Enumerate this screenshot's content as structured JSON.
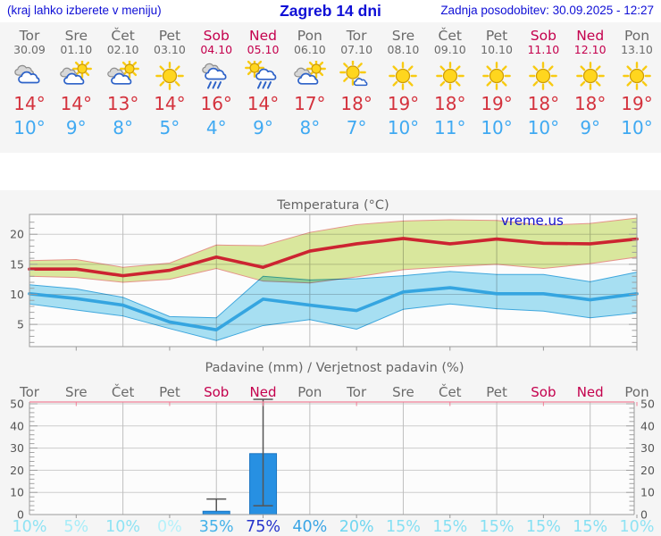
{
  "header": {
    "left_note": "(kraj lahko izberete v meniju)",
    "title": "Zagreb 14 dni",
    "last_updated": "Zadnja posodobitev: 30.09.2025 - 12:27"
  },
  "watermark": "vreme.us",
  "colors": {
    "link_blue": "#0f0fd6",
    "weekday": "#6a6a6a",
    "weekend": "#c4004d",
    "temp_max": "#d4323d",
    "temp_min": "#3fa9f2",
    "bar_fill": "#2790e2",
    "bar_edge": "#1b76c2",
    "max_line": "#cc2431",
    "max_band": "#dcea9f",
    "max_band_edge": "#e8958c",
    "min_line": "#35a5e0",
    "min_band": "#a9e2f5",
    "min_band_edge": "#3fa9e0",
    "precip_top_spine": "#ef7f96",
    "whisker": "#555555",
    "axis": "#9a9a9a",
    "grid_h": "#cdcdcd",
    "grid_v": "#bfbfbf",
    "chart_text": "#666666",
    "tick_text": "#555555"
  },
  "days": [
    {
      "name": "Tor",
      "date": "30.09",
      "weekend": false,
      "icon": "cloudy",
      "tmax": "14°",
      "tmin": "10°"
    },
    {
      "name": "Sre",
      "date": "01.10",
      "weekend": false,
      "icon": "partly",
      "tmax": "14°",
      "tmin": "9°"
    },
    {
      "name": "Čet",
      "date": "02.10",
      "weekend": false,
      "icon": "partly",
      "tmax": "13°",
      "tmin": "8°"
    },
    {
      "name": "Pet",
      "date": "03.10",
      "weekend": false,
      "icon": "sunny",
      "tmax": "14°",
      "tmin": "5°"
    },
    {
      "name": "Sob",
      "date": "04.10",
      "weekend": true,
      "icon": "rain",
      "tmax": "16°",
      "tmin": "4°"
    },
    {
      "name": "Ned",
      "date": "05.10",
      "weekend": true,
      "icon": "sun-rain",
      "tmax": "14°",
      "tmin": "9°"
    },
    {
      "name": "Pon",
      "date": "06.10",
      "weekend": false,
      "icon": "partly",
      "tmax": "17°",
      "tmin": "8°"
    },
    {
      "name": "Tor",
      "date": "07.10",
      "weekend": false,
      "icon": "sun-cloud",
      "tmax": "18°",
      "tmin": "7°"
    },
    {
      "name": "Sre",
      "date": "08.10",
      "weekend": false,
      "icon": "sunny",
      "tmax": "19°",
      "tmin": "10°"
    },
    {
      "name": "Čet",
      "date": "09.10",
      "weekend": false,
      "icon": "sunny",
      "tmax": "18°",
      "tmin": "11°"
    },
    {
      "name": "Pet",
      "date": "10.10",
      "weekend": false,
      "icon": "sunny",
      "tmax": "19°",
      "tmin": "10°"
    },
    {
      "name": "Sob",
      "date": "11.10",
      "weekend": true,
      "icon": "sunny",
      "tmax": "18°",
      "tmin": "10°"
    },
    {
      "name": "Ned",
      "date": "12.10",
      "weekend": true,
      "icon": "sunny",
      "tmax": "18°",
      "tmin": "9°"
    },
    {
      "name": "Pon",
      "date": "13.10",
      "weekend": false,
      "icon": "sunny",
      "tmax": "19°",
      "tmin": "10°"
    }
  ],
  "chart_data": [
    {
      "type": "line",
      "title": "Temperatura (°C)",
      "categories": [
        "Tor",
        "Sre",
        "Čet",
        "Pet",
        "Sob",
        "Ned",
        "Pon",
        "Tor",
        "Sre",
        "Čet",
        "Pet",
        "Sob",
        "Ned",
        "Pon"
      ],
      "yticks": [
        5,
        10,
        15,
        20
      ],
      "ylim": [
        1.3,
        23.3
      ],
      "grid_day_indices": [
        2,
        4,
        6,
        8,
        10,
        12
      ],
      "legend_position": "none",
      "series": [
        {
          "name": "max-temp",
          "values": [
            14.2,
            14.2,
            13.1,
            14.0,
            16.2,
            14.5,
            17.2,
            18.4,
            19.3,
            18.4,
            19.2,
            18.5,
            18.4,
            19.2
          ],
          "band_upper": [
            15.6,
            15.8,
            14.5,
            15.2,
            18.2,
            18.1,
            20.3,
            21.6,
            22.2,
            22.4,
            22.3,
            21.5,
            21.8,
            22.7
          ],
          "band_lower": [
            13.0,
            12.8,
            12.0,
            12.5,
            14.3,
            12.2,
            11.9,
            12.9,
            14.1,
            14.6,
            15.0,
            14.3,
            15.1,
            16.2
          ]
        },
        {
          "name": "min-temp",
          "values": [
            10.1,
            9.3,
            8.2,
            5.4,
            4.1,
            9.2,
            8.2,
            7.3,
            10.4,
            11.1,
            10.1,
            10.1,
            9.1,
            10.1
          ],
          "band_upper": [
            11.6,
            10.9,
            9.5,
            6.3,
            6.1,
            13.0,
            12.4,
            12.6,
            13.1,
            13.8,
            13.3,
            13.3,
            12.1,
            13.7
          ],
          "band_lower": [
            8.4,
            7.4,
            6.4,
            4.3,
            2.3,
            4.8,
            5.8,
            4.2,
            7.5,
            8.4,
            7.6,
            7.2,
            6.1,
            6.9
          ]
        }
      ]
    },
    {
      "type": "bar",
      "title": "Padavine (mm) / Verjetnost padavin (%)",
      "categories": [
        "Tor",
        "Sre",
        "Čet",
        "Pet",
        "Sob",
        "Ned",
        "Pon",
        "Tor",
        "Sre",
        "Čet",
        "Pet",
        "Sob",
        "Ned",
        "Pon"
      ],
      "values": [
        0,
        0,
        0,
        0,
        1.5,
        27.5,
        0,
        0,
        0,
        0,
        0,
        0,
        0,
        0
      ],
      "whisker_top": [
        null,
        null,
        null,
        null,
        7,
        52,
        null,
        null,
        null,
        null,
        null,
        null,
        null,
        null
      ],
      "whisker_bottom": [
        null,
        null,
        null,
        null,
        null,
        4,
        null,
        null,
        null,
        null,
        null,
        null,
        null,
        null
      ],
      "yticks": [
        0,
        10,
        20,
        30,
        40,
        50
      ],
      "ylim": [
        0,
        50.8
      ],
      "grid_day_indices": [
        2,
        4,
        6,
        8,
        10,
        12
      ],
      "prob_values": [
        10,
        5,
        10,
        0,
        35,
        75,
        40,
        20,
        15,
        15,
        15,
        15,
        15,
        10
      ],
      "prob_labels": [
        "10%",
        "5%",
        "10%",
        "0%",
        "35%",
        "75%",
        "40%",
        "20%",
        "15%",
        "15%",
        "15%",
        "15%",
        "15%",
        "10%"
      ],
      "prob_colors": [
        "#8fe3f4",
        "#a8edf8",
        "#8fe3f4",
        "#b5f1fa",
        "#45b2e9",
        "#2533cb",
        "#3aa5e5",
        "#6fd6f0",
        "#86e0f3",
        "#86e0f3",
        "#86e0f3",
        "#86e0f3",
        "#86e0f3",
        "#8fe3f4"
      ]
    }
  ]
}
